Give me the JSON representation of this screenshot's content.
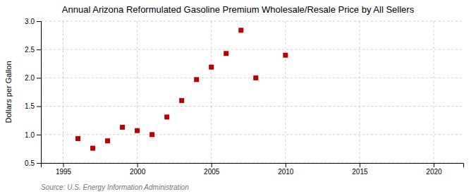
{
  "chart_data": {
    "type": "scatter",
    "title": "Annual Arizona Reformulated Gasoline Premium Wholesale/Resale Price by All Sellers",
    "y_label": "Dollars per Gallon",
    "annotations": [
      "Source: U.S. Energy Information Administration"
    ],
    "x": [
      1996,
      1997,
      1998,
      1999,
      2000,
      2001,
      2002,
      2003,
      2004,
      2005,
      2006,
      2007,
      2008,
      2010
    ],
    "values": [
      0.93,
      0.76,
      0.89,
      1.13,
      1.07,
      1.0,
      1.31,
      1.6,
      1.97,
      2.19,
      2.43,
      2.84,
      2.0,
      2.4
    ],
    "xlim": [
      1993.5,
      2022
    ],
    "ylim": [
      0.5,
      3.0
    ],
    "xticks": [
      1995,
      2000,
      2005,
      2010,
      2015,
      2020
    ],
    "yticks": [
      0.5,
      {
        "value": 1.0,
        "label": "1.0"
      },
      1.5,
      {
        "value": 2.0,
        "label": "2.0"
      },
      2.5,
      {
        "value": 3.0,
        "label": "3.0"
      }
    ],
    "color": "#bb0000",
    "marker": "square",
    "grid": true
  }
}
